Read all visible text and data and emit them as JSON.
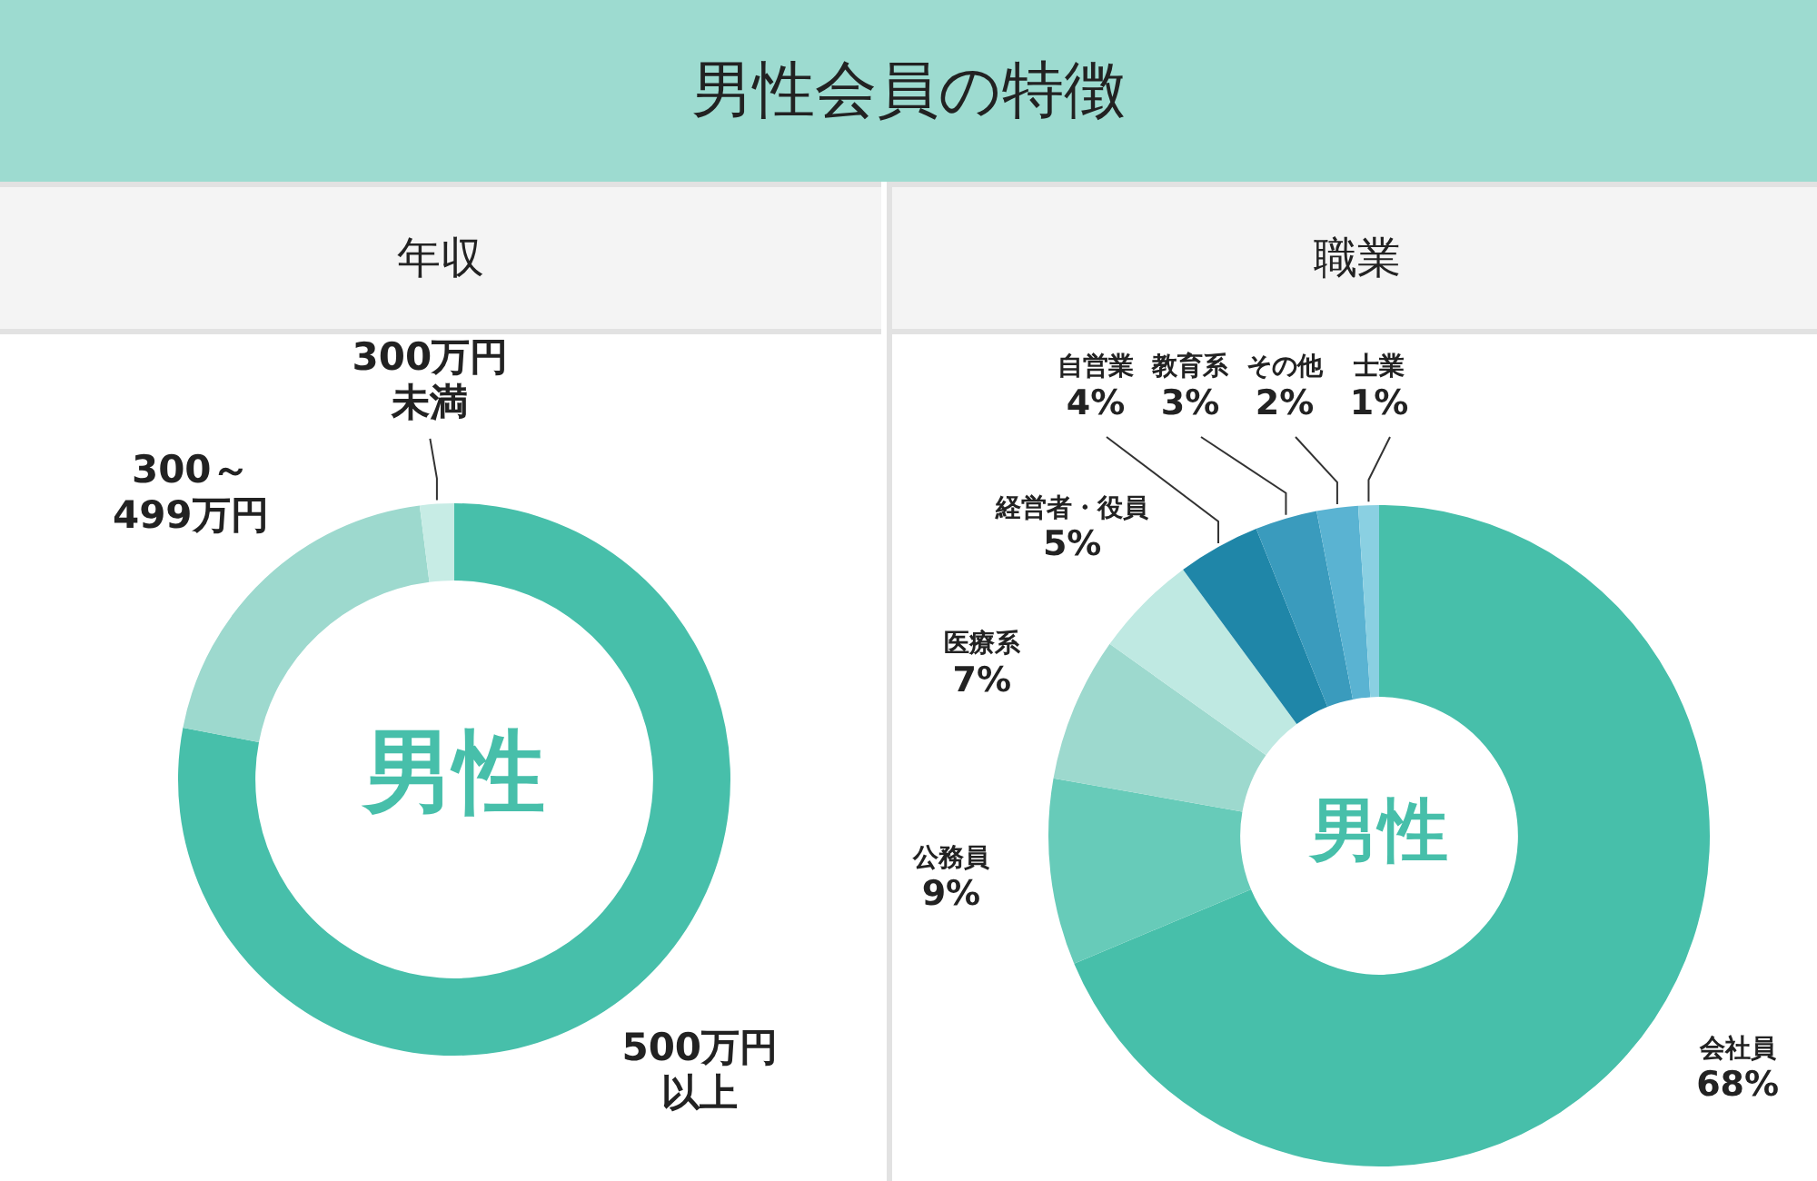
{
  "chart_data": [
    {
      "type": "donut",
      "title": "男性会員の特徴",
      "subtitle": "年収",
      "categories": [
        "500万円以上",
        "300～499万円",
        "300万円未満"
      ],
      "values": [
        78,
        20,
        2
      ],
      "colors": [
        "#47bfaa",
        "#9dd9ce",
        "#c7ece5"
      ],
      "annotations": [
        "男性"
      ],
      "legend": false
    },
    {
      "type": "donut",
      "subtitle": "職業",
      "categories": [
        "会社員",
        "公務員",
        "医療系",
        "経営者・役員",
        "自営業",
        "教育系",
        "その他",
        "士業"
      ],
      "values": [
        68,
        9,
        7,
        5,
        4,
        3,
        2,
        1
      ],
      "value_labels": [
        "68%",
        "9%",
        "7%",
        "5%",
        "4%",
        "3%",
        "2%",
        "1%"
      ],
      "colors": [
        "#47bfaa",
        "#67cbb9",
        "#9dd9ce",
        "#bfe9e2",
        "#1f86a8",
        "#3a9bbd",
        "#5ab3d2",
        "#8ad0e2"
      ],
      "annotations": [
        "男性"
      ],
      "legend": false
    }
  ]
}
